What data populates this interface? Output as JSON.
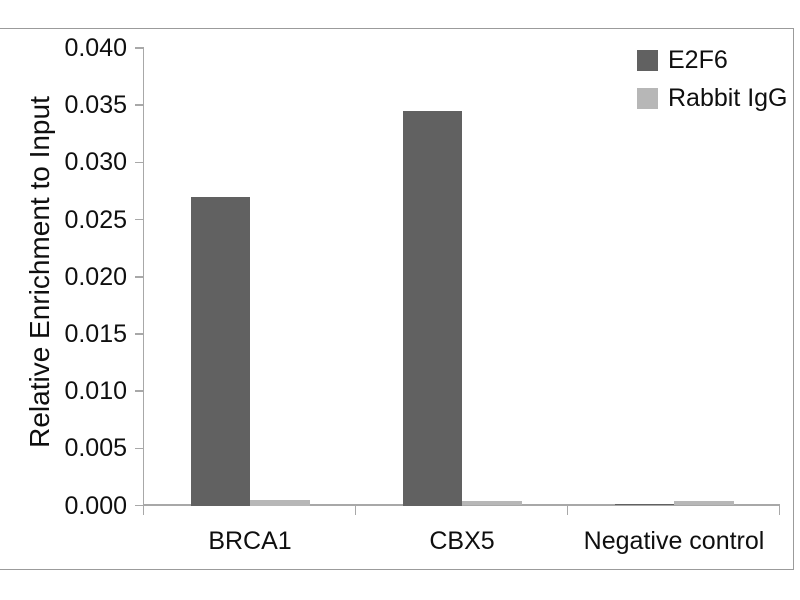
{
  "chart_data": {
    "type": "bar",
    "title": "",
    "xlabel": "",
    "ylabel": "Relative Enrichment to Input",
    "categories": [
      "BRCA1",
      "CBX5",
      "Negative control"
    ],
    "series": [
      {
        "name": "E2F6",
        "color": "#616161",
        "values": [
          0.027,
          0.0345,
          0.0001
        ]
      },
      {
        "name": "Rabbit IgG",
        "color": "#b7b7b7",
        "values": [
          0.0005,
          0.0004,
          0.0004
        ]
      }
    ],
    "ylim": [
      0,
      0.04
    ],
    "ytick_step": 0.005,
    "ytick_labels": [
      "0.000",
      "0.005",
      "0.010",
      "0.015",
      "0.020",
      "0.025",
      "0.030",
      "0.035",
      "0.040"
    ],
    "grid": false,
    "legend_position": "top-right",
    "bar_orientation": "vertical",
    "colors": {
      "axis_line": "#a8a8a8",
      "frame_border": "#9b9b9b",
      "text": "#0f0f0f",
      "background": "#ffffff"
    }
  }
}
